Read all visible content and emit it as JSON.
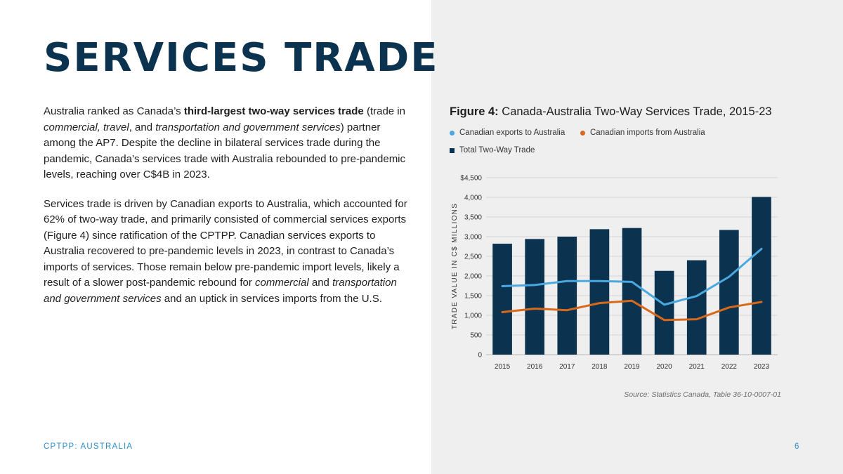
{
  "page": {
    "title": "SERVICES TRADE",
    "paragraph1": [
      {
        "t": "Australia ranked as Canada’s ",
        "s": ""
      },
      {
        "t": "third-largest two-way services trade",
        "s": "b"
      },
      {
        "t": " (trade in ",
        "s": ""
      },
      {
        "t": "commercial, travel",
        "s": "i"
      },
      {
        "t": ", and ",
        "s": ""
      },
      {
        "t": "transportation and government services",
        "s": "i"
      },
      {
        "t": ") partner among the AP7. Despite the decline in bilateral services trade during the pandemic, Canada’s services trade with Australia rebounded to pre-pandemic levels, reaching over C$4B in 2023.",
        "s": ""
      }
    ],
    "paragraph2": [
      {
        "t": "Services trade is driven by Canadian exports to Australia, which accounted for 62% of two-way trade, and primarily consisted of commercial services exports (Figure 4) since ratification of the CPTPP. Canadian services exports to Australia recovered to pre-pandemic levels in 2023, in contrast to Canada’s imports of services. Those remain below pre-pandemic import levels, likely a result of a slower post-pandemic rebound for ",
        "s": ""
      },
      {
        "t": "commercial",
        "s": "i"
      },
      {
        "t": " and ",
        "s": ""
      },
      {
        "t": "transportation and government services",
        "s": "i"
      },
      {
        "t": " and an uptick in services imports from the U.S.",
        "s": ""
      }
    ],
    "footer_left": "CPTPP: AUSTRALIA",
    "footer_right": "6"
  },
  "figure": {
    "label": "Figure 4:",
    "caption": "Canada-Australia Two-Way Services Trade, 2015-23",
    "source": "Source: Statistics Canada, Table 36-10-0007-01"
  },
  "colors": {
    "bar": "#0b3350",
    "exports": "#4aa8de",
    "imports": "#d9691a",
    "title": "#0b3350",
    "accent": "#2c8fc7"
  },
  "chart_data": {
    "type": "bar",
    "categories": [
      "2015",
      "2016",
      "2017",
      "2018",
      "2019",
      "2020",
      "2021",
      "2022",
      "2023"
    ],
    "series": [
      {
        "name": "Total Two-Way Trade",
        "type": "bar",
        "values": [
          2820,
          2940,
          3000,
          3190,
          3220,
          2130,
          2400,
          3170,
          4010
        ]
      },
      {
        "name": "Canadian exports to Australia",
        "type": "line",
        "values": [
          1740,
          1770,
          1870,
          1870,
          1850,
          1270,
          1490,
          1980,
          2690
        ]
      },
      {
        "name": "Canadian imports from Australia",
        "type": "line",
        "values": [
          1080,
          1170,
          1130,
          1310,
          1370,
          880,
          900,
          1200,
          1340
        ]
      }
    ],
    "ylabel": "TRADE VALUE IN C$ MILLIONS",
    "xlabel": "",
    "ylim": [
      0,
      4500
    ],
    "yticks": [
      0,
      500,
      1000,
      1500,
      2000,
      2500,
      3000,
      3500,
      4000,
      4500
    ],
    "ytick_labels": [
      "0",
      "500",
      "1,000",
      "1,500",
      "2,000",
      "2,500",
      "3,000",
      "3,500",
      "4,000",
      "$4,500"
    ],
    "grid": true,
    "legend_position": "top-left"
  }
}
